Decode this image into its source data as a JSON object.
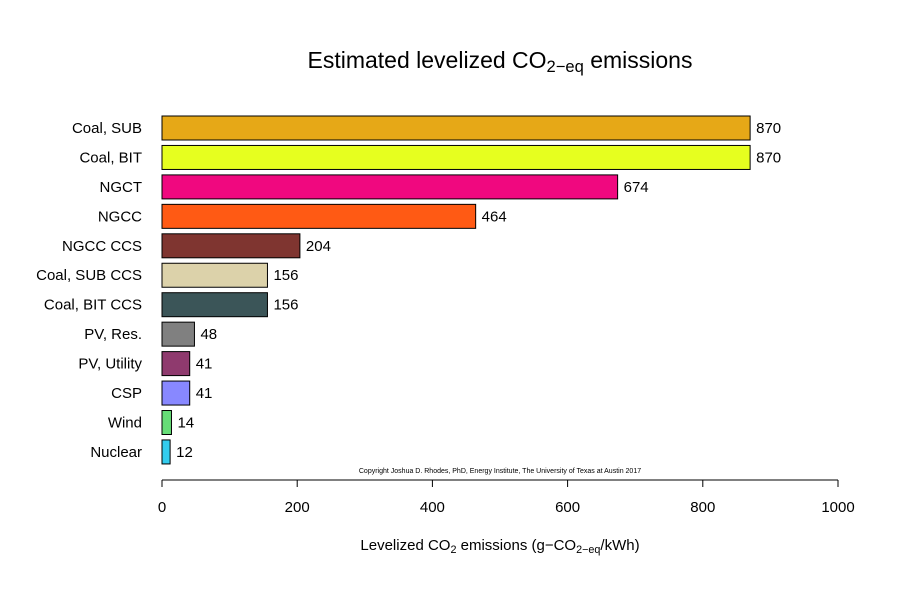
{
  "chart_data": {
    "type": "bar",
    "orientation": "horizontal",
    "title": [
      "Estimated levelized CO",
      "2−eq",
      " emissions"
    ],
    "x_label": [
      "Levelized CO",
      "2",
      " emissions (g−CO",
      "2−eq",
      "/kWh)"
    ],
    "annotation": "Copyright Joshua D. Rhodes, PhD, Energy Institute, The University of Texas at Austin 2017",
    "categories": [
      "Coal, SUB",
      "Coal, BIT",
      "NGCT",
      "NGCC",
      "NGCC CCS",
      "Coal, SUB CCS",
      "Coal, BIT CCS",
      "PV, Res.",
      "PV, Utility",
      "CSP",
      "Wind",
      "Nuclear"
    ],
    "values": [
      870,
      870,
      674,
      464,
      204,
      156,
      156,
      48,
      41,
      41,
      14,
      12
    ],
    "colors": [
      "#e6a817",
      "#e6ff1f",
      "#f0087f",
      "#ff5a14",
      "#7f3530",
      "#dcd2aa",
      "#3b5558",
      "#808080",
      "#8f3a6e",
      "#8888ff",
      "#66dd77",
      "#33ccee"
    ],
    "xlim": [
      0,
      1000
    ],
    "xticks": [
      0,
      200,
      400,
      600,
      800,
      1000
    ]
  }
}
